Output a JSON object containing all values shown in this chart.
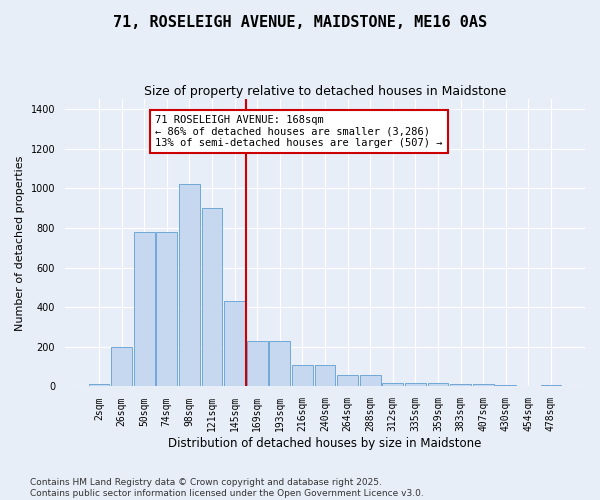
{
  "title": "71, ROSELEIGH AVENUE, MAIDSTONE, ME16 0AS",
  "subtitle": "Size of property relative to detached houses in Maidstone",
  "xlabel": "Distribution of detached houses by size in Maidstone",
  "ylabel": "Number of detached properties",
  "bar_labels": [
    "2sqm",
    "26sqm",
    "50sqm",
    "74sqm",
    "98sqm",
    "121sqm",
    "145sqm",
    "169sqm",
    "193sqm",
    "216sqm",
    "240sqm",
    "264sqm",
    "288sqm",
    "312sqm",
    "335sqm",
    "359sqm",
    "383sqm",
    "407sqm",
    "430sqm",
    "454sqm",
    "478sqm"
  ],
  "bar_values": [
    10,
    200,
    780,
    780,
    1020,
    900,
    430,
    230,
    230,
    110,
    110,
    60,
    60,
    20,
    20,
    20,
    10,
    10,
    5,
    0,
    5
  ],
  "bar_color": "#c5d8f0",
  "bar_edgecolor": "#6fa8d6",
  "vline_index": 7,
  "annotation_text": "71 ROSELEIGH AVENUE: 168sqm\n← 86% of detached houses are smaller (3,286)\n13% of semi-detached houses are larger (507) →",
  "annotation_box_facecolor": "#ffffff",
  "annotation_box_edgecolor": "#cc0000",
  "vline_color": "#cc0000",
  "ylim": [
    0,
    1450
  ],
  "yticks": [
    0,
    200,
    400,
    600,
    800,
    1000,
    1200,
    1400
  ],
  "background_color": "#e8eef8",
  "grid_color": "#ffffff",
  "footer_text": "Contains HM Land Registry data © Crown copyright and database right 2025.\nContains public sector information licensed under the Open Government Licence v3.0.",
  "title_fontsize": 11,
  "subtitle_fontsize": 9,
  "xlabel_fontsize": 8.5,
  "ylabel_fontsize": 8,
  "tick_fontsize": 7,
  "annotation_fontsize": 7.5,
  "footer_fontsize": 6.5
}
